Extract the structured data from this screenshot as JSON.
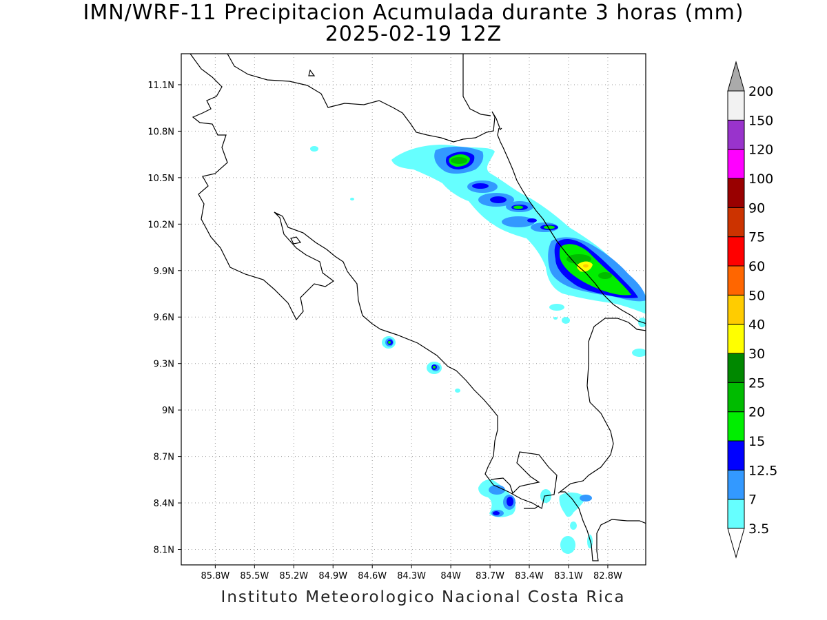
{
  "title": "IMN/WRF-11 Precipitacion Acumulada durante 3 horas (mm)",
  "subtitle": "2025-02-19 12Z",
  "footer": "Instituto Meteorologico Nacional Costa Rica",
  "map": {
    "lon_range": [
      -86.06,
      -82.51
    ],
    "lat_range": [
      8.0,
      11.3
    ],
    "lon_ticks": [
      {
        "value": -85.8,
        "label": "85.8W"
      },
      {
        "value": -85.5,
        "label": "85.5W"
      },
      {
        "value": -85.2,
        "label": "85.2W"
      },
      {
        "value": -84.9,
        "label": "84.9W"
      },
      {
        "value": -84.6,
        "label": "84.6W"
      },
      {
        "value": -84.3,
        "label": "84.3W"
      },
      {
        "value": -84.0,
        "label": "84W"
      },
      {
        "value": -83.7,
        "label": "83.7W"
      },
      {
        "value": -83.4,
        "label": "83.4W"
      },
      {
        "value": -83.1,
        "label": "83.1W"
      },
      {
        "value": -82.8,
        "label": "82.8W"
      }
    ],
    "lat_ticks": [
      {
        "value": 11.1,
        "label": "11.1N"
      },
      {
        "value": 10.8,
        "label": "10.8N"
      },
      {
        "value": 10.5,
        "label": "10.5N"
      },
      {
        "value": 10.2,
        "label": "10.2N"
      },
      {
        "value": 9.9,
        "label": "9.9N"
      },
      {
        "value": 9.6,
        "label": "9.6N"
      },
      {
        "value": 9.3,
        "label": "9.3N"
      },
      {
        "value": 9.0,
        "label": "9N"
      },
      {
        "value": 8.7,
        "label": "8.7N"
      },
      {
        "value": 8.4,
        "label": "8.4N"
      },
      {
        "value": 8.1,
        "label": "8.1N"
      }
    ],
    "grid": true
  },
  "legend": {
    "levels": [
      {
        "label": "3.5",
        "color": "#66ffff"
      },
      {
        "label": "7",
        "color": "#3399ff"
      },
      {
        "label": "12.5",
        "color": "#0000ff"
      },
      {
        "label": "15",
        "color": "#00ee00"
      },
      {
        "label": "20",
        "color": "#00bb00"
      },
      {
        "label": "25",
        "color": "#008800"
      },
      {
        "label": "30",
        "color": "#ffff00"
      },
      {
        "label": "40",
        "color": "#ffcc00"
      },
      {
        "label": "50",
        "color": "#ff6600"
      },
      {
        "label": "60",
        "color": "#ff0000"
      },
      {
        "label": "75",
        "color": "#cc3300"
      },
      {
        "label": "90",
        "color": "#990000"
      },
      {
        "label": "100",
        "color": "#ff00ff"
      },
      {
        "label": "120",
        "color": "#9933cc"
      },
      {
        "label": "150",
        "color": "#f2f2f2"
      },
      {
        "label": "200",
        "color": "#aaaaaa"
      }
    ]
  }
}
